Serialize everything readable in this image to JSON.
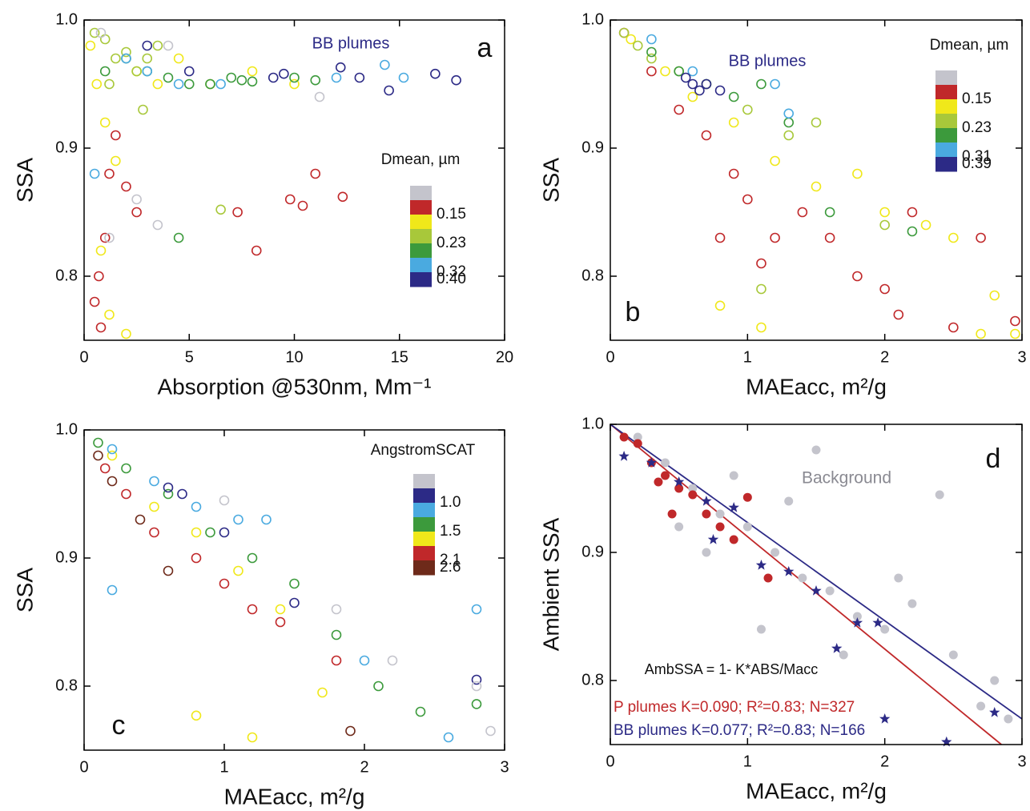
{
  "chart_data": [
    {
      "type": "scatter",
      "panel_label": "a",
      "xlabel": "Absorption @530nm, Mm⁻¹",
      "ylabel": "SSA",
      "xlim": [
        0,
        20
      ],
      "ylim": [
        0.75,
        1.0
      ],
      "xticks": [
        0,
        5,
        10,
        15,
        20
      ],
      "yticks": [
        0.8,
        0.9,
        {
          "value": 1.0,
          "label": "1.0"
        }
      ],
      "marker": "open-circle",
      "colorbar": {
        "title": "Dmean, µm",
        "colors": [
          "#c4c4cc",
          "#c0282a",
          "#f0e81a",
          "#a8c83a",
          "#3c9a3c",
          "#4aaae0",
          "#2c2a86"
        ],
        "ticks": [
          0.15,
          0.23,
          0.32,
          {
            "value": 0.4,
            "label": "0.40"
          }
        ]
      },
      "annotations": [
        {
          "text": "BB plumes",
          "color": "#2c2a86"
        }
      ],
      "series": [
        {
          "color": "#c0282a",
          "x": [
            0.5,
            0.8,
            1.2,
            1.5,
            2.0,
            2.5,
            7.3,
            8.2,
            9.8,
            10.4,
            11.0,
            12.3,
            0.7,
            1.0
          ],
          "y": [
            0.78,
            0.76,
            0.88,
            0.91,
            0.87,
            0.85,
            0.85,
            0.82,
            0.86,
            0.855,
            0.88,
            0.862,
            0.8,
            0.83
          ]
        },
        {
          "color": "#f0e81a",
          "x": [
            0.3,
            0.6,
            1.0,
            1.5,
            2.5,
            3.5,
            4.5,
            6,
            8,
            10,
            0.8,
            1.2,
            2.0
          ],
          "y": [
            0.98,
            0.95,
            0.92,
            0.89,
            0.96,
            0.95,
            0.97,
            0.95,
            0.96,
            0.95,
            0.82,
            0.77,
            0.755
          ]
        },
        {
          "color": "#a8c83a",
          "x": [
            0.5,
            1,
            1.5,
            2,
            2.5,
            3,
            3.5,
            1.2,
            2.8,
            6.5
          ],
          "y": [
            0.99,
            0.985,
            0.97,
            0.975,
            0.96,
            0.97,
            0.98,
            0.95,
            0.93,
            0.852
          ]
        },
        {
          "color": "#3c9a3c",
          "x": [
            1,
            2,
            3,
            4,
            5,
            6,
            7,
            7.5,
            8,
            10,
            11,
            4.5
          ],
          "y": [
            0.96,
            0.97,
            0.96,
            0.955,
            0.95,
            0.95,
            0.955,
            0.953,
            0.952,
            0.955,
            0.953,
            0.83
          ]
        },
        {
          "color": "#4aaae0",
          "x": [
            2,
            3,
            4.5,
            6.5,
            12,
            14.3,
            15.2,
            0.5
          ],
          "y": [
            0.97,
            0.96,
            0.95,
            0.95,
            0.955,
            0.965,
            0.955,
            0.88
          ]
        },
        {
          "color": "#2c2a86",
          "x": [
            3,
            5,
            9,
            9.5,
            12.2,
            13.1,
            14.5,
            16.7,
            17.7
          ],
          "y": [
            0.98,
            0.96,
            0.955,
            0.958,
            0.963,
            0.955,
            0.945,
            0.958,
            0.953
          ]
        },
        {
          "color": "#c4c4cc",
          "x": [
            1.2,
            2.5,
            3.5,
            11.2,
            4,
            0.8
          ],
          "y": [
            0.83,
            0.86,
            0.84,
            0.94,
            0.98,
            0.99
          ]
        }
      ]
    },
    {
      "type": "scatter",
      "panel_label": "b",
      "xlabel": "MAEacc, m²/g",
      "ylabel": "SSA",
      "xlim": [
        0,
        3
      ],
      "ylim": [
        0.75,
        1.0
      ],
      "xticks": [
        0,
        1,
        2,
        3
      ],
      "yticks": [
        0.8,
        0.9,
        {
          "value": 1.0,
          "label": "1.0"
        }
      ],
      "marker": "open-circle",
      "colorbar": {
        "title": "Dmean, µm",
        "colors": [
          "#c4c4cc",
          "#c0282a",
          "#f0e81a",
          "#a8c83a",
          "#3c9a3c",
          "#4aaae0",
          "#2c2a86"
        ],
        "ticks": [
          0.15,
          0.23,
          0.31,
          0.39
        ]
      },
      "annotations": [
        {
          "text": "BB plumes",
          "color": "#2c2a86"
        }
      ],
      "series": [
        {
          "color": "#c0282a",
          "x": [
            0.1,
            0.3,
            0.5,
            0.7,
            0.9,
            1.0,
            1.2,
            1.4,
            1.6,
            1.8,
            2.0,
            2.1,
            2.2,
            2.5,
            2.7,
            2.95,
            0.8,
            1.1
          ],
          "y": [
            0.99,
            0.96,
            0.93,
            0.91,
            0.88,
            0.86,
            0.83,
            0.85,
            0.83,
            0.8,
            0.79,
            0.77,
            0.85,
            0.76,
            0.83,
            0.765,
            0.83,
            0.81
          ]
        },
        {
          "color": "#f0e81a",
          "x": [
            0.15,
            0.4,
            0.6,
            0.9,
            1.2,
            1.5,
            1.8,
            2.0,
            2.3,
            2.5,
            2.8,
            1.1,
            0.8,
            2.7,
            2.95
          ],
          "y": [
            0.985,
            0.96,
            0.94,
            0.92,
            0.89,
            0.87,
            0.88,
            0.85,
            0.84,
            0.83,
            0.785,
            0.76,
            0.777,
            0.755,
            0.755
          ]
        },
        {
          "color": "#a8c83a",
          "x": [
            0.1,
            0.2,
            0.3,
            0.5,
            0.7,
            1.0,
            1.3,
            1.5,
            2.0,
            1.1
          ],
          "y": [
            0.99,
            0.98,
            0.97,
            0.96,
            0.95,
            0.93,
            0.91,
            0.92,
            0.84,
            0.79
          ]
        },
        {
          "color": "#3c9a3c",
          "x": [
            0.3,
            0.5,
            0.7,
            0.9,
            1.1,
            1.3,
            2.2,
            1.6
          ],
          "y": [
            0.975,
            0.96,
            0.95,
            0.94,
            0.95,
            0.92,
            0.835,
            0.85
          ]
        },
        {
          "color": "#4aaae0",
          "x": [
            0.3,
            0.6,
            1.2,
            1.3
          ],
          "y": [
            0.985,
            0.96,
            0.95,
            0.927
          ]
        },
        {
          "color": "#2c2a86",
          "x": [
            0.55,
            0.6,
            0.65,
            0.7,
            0.8
          ],
          "y": [
            0.955,
            0.95,
            0.945,
            0.95,
            0.945
          ]
        }
      ]
    },
    {
      "type": "scatter",
      "panel_label": "c",
      "xlabel": "MAEacc, m²/g",
      "ylabel": "SSA",
      "xlim": [
        0,
        3
      ],
      "ylim": [
        0.75,
        1.0
      ],
      "xticks": [
        0,
        1,
        2,
        3
      ],
      "yticks": [
        0.8,
        0.9,
        {
          "value": 1.0,
          "label": "1.0"
        }
      ],
      "marker": "open-circle",
      "colorbar": {
        "title": "AngstromSCAT",
        "colors": [
          "#c4c4cc",
          "#2c2a86",
          "#4aaae0",
          "#3c9a3c",
          "#f0e81a",
          "#c0282a",
          "#6e2a1a"
        ],
        "ticks": [
          {
            "value": 1.0,
            "label": "1.0"
          },
          1.5,
          2.1,
          2.6
        ]
      },
      "annotations": [],
      "series": [
        {
          "color": "#6e2a1a",
          "x": [
            0.1,
            0.2,
            0.4,
            0.6,
            1.9
          ],
          "y": [
            0.98,
            0.96,
            0.93,
            0.89,
            0.765
          ]
        },
        {
          "color": "#c0282a",
          "x": [
            0.15,
            0.3,
            0.5,
            0.8,
            1.0,
            1.2,
            1.4,
            1.8
          ],
          "y": [
            0.97,
            0.95,
            0.92,
            0.9,
            0.88,
            0.86,
            0.85,
            0.82
          ]
        },
        {
          "color": "#f0e81a",
          "x": [
            0.2,
            0.5,
            0.8,
            1.1,
            1.4,
            0.8,
            1.2,
            1.7
          ],
          "y": [
            0.98,
            0.94,
            0.92,
            0.89,
            0.86,
            0.777,
            0.76,
            0.795
          ]
        },
        {
          "color": "#3c9a3c",
          "x": [
            0.1,
            0.3,
            0.6,
            0.9,
            1.2,
            1.5,
            1.8,
            2.1,
            2.4,
            2.8
          ],
          "y": [
            0.99,
            0.97,
            0.95,
            0.92,
            0.9,
            0.88,
            0.84,
            0.8,
            0.78,
            0.786
          ]
        },
        {
          "color": "#4aaae0",
          "x": [
            0.2,
            0.5,
            0.8,
            1.1,
            1.3,
            2.0,
            2.6,
            2.8,
            0.2
          ],
          "y": [
            0.985,
            0.96,
            0.94,
            0.93,
            0.93,
            0.82,
            0.76,
            0.86,
            0.875
          ]
        },
        {
          "color": "#2c2a86",
          "x": [
            0.6,
            0.7,
            1.0,
            1.5,
            2.8
          ],
          "y": [
            0.955,
            0.95,
            0.92,
            0.865,
            0.805
          ]
        },
        {
          "color": "#c4c4cc",
          "x": [
            1.0,
            1.8,
            2.2,
            2.8,
            2.9
          ],
          "y": [
            0.945,
            0.86,
            0.82,
            0.8,
            0.765
          ]
        }
      ]
    },
    {
      "type": "scatter",
      "panel_label": "d",
      "xlabel": "MAEacc, m²/g",
      "ylabel": "Ambient SSA",
      "xlim": [
        0,
        3
      ],
      "ylim": [
        0.75,
        1.0
      ],
      "xticks": [
        0,
        1,
        2,
        3
      ],
      "yticks": [
        0.8,
        0.9,
        {
          "value": 1.0,
          "label": "1.0"
        }
      ],
      "annotations": [
        {
          "text": "Background",
          "color": "#8a8a92"
        },
        {
          "text": "AmbSSA = 1- K*ABS/Macc",
          "color": "#111111"
        },
        {
          "text": "P plumes K=0.090; R²=0.83; N=327",
          "color": "#c0282a"
        },
        {
          "text": "BB plumes  K=0.077; R²=0.83; N=166",
          "color": "#2c2a86"
        }
      ],
      "lines": [
        {
          "color": "#c0282a",
          "x": [
            0,
            2.85
          ],
          "y": [
            1.0,
            0.75
          ]
        },
        {
          "color": "#2c2a86",
          "x": [
            0,
            3
          ],
          "y": [
            1.0,
            0.77
          ]
        }
      ],
      "series": [
        {
          "color": "#c4c4cc",
          "marker": "filled-circle",
          "x": [
            0.2,
            0.4,
            0.6,
            0.8,
            1.0,
            1.2,
            1.4,
            1.6,
            1.8,
            2.0,
            2.2,
            2.5,
            2.8,
            0.5,
            0.9,
            1.3,
            1.7,
            2.1,
            2.4,
            2.7,
            1.5,
            0.7,
            1.1,
            2.9
          ],
          "y": [
            0.99,
            0.97,
            0.95,
            0.93,
            0.92,
            0.9,
            0.88,
            0.87,
            0.85,
            0.84,
            0.86,
            0.82,
            0.8,
            0.92,
            0.96,
            0.94,
            0.82,
            0.88,
            0.945,
            0.78,
            0.98,
            0.9,
            0.84,
            0.77
          ]
        },
        {
          "color": "#c0282a",
          "marker": "filled-circle",
          "x": [
            0.1,
            0.2,
            0.3,
            0.4,
            0.5,
            0.6,
            0.7,
            0.8,
            0.9,
            1.0,
            1.15,
            0.45,
            0.35
          ],
          "y": [
            0.99,
            0.985,
            0.97,
            0.96,
            0.95,
            0.945,
            0.93,
            0.92,
            0.91,
            0.943,
            0.88,
            0.93,
            0.955
          ]
        },
        {
          "color": "#2c2a86",
          "marker": "star",
          "x": [
            0.1,
            0.3,
            0.5,
            0.7,
            0.9,
            1.1,
            1.3,
            1.5,
            1.8,
            1.95,
            2.0,
            2.8,
            2.45,
            0.75,
            1.65
          ],
          "y": [
            0.975,
            0.97,
            0.955,
            0.94,
            0.935,
            0.89,
            0.885,
            0.87,
            0.845,
            0.845,
            0.77,
            0.775,
            0.752,
            0.91,
            0.825
          ]
        }
      ]
    }
  ]
}
